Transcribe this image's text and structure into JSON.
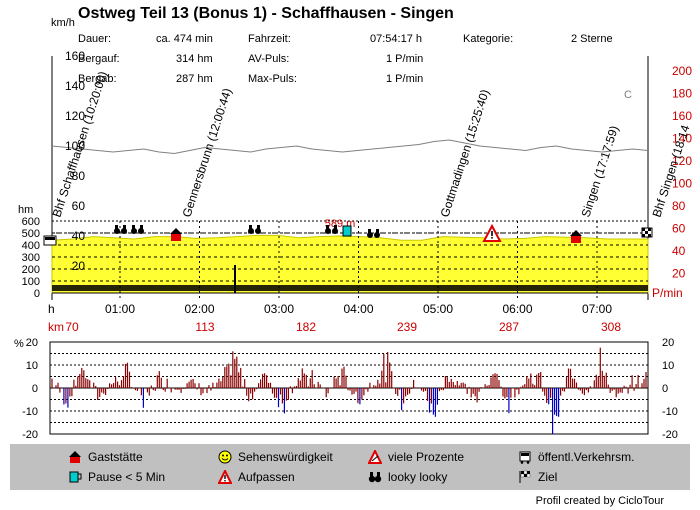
{
  "title": "Ostweg Teil 13 (Bonus 1) - Schaffhausen - Singen",
  "info": {
    "dauer_label": "Dauer:",
    "dauer_value": "ca. 474 min",
    "fahrzeit_label": "Fahrzeit:",
    "fahrzeit_value": "07:54:17 h",
    "kategorie_label": "Kategorie:",
    "kategorie_value": "2 Sterne",
    "bergauf_label": "Bergauf:",
    "bergauf_value": "314 hm",
    "avpuls_label": "AV-Puls:",
    "avpuls_value": "1 P/min",
    "bergab_label": "Bergab:",
    "bergab_value": "287 hm",
    "maxpuls_label": "Max-Puls:",
    "maxpuls_value": "1 P/min"
  },
  "axes": {
    "speed_unit": "km/h",
    "speed_ticks": [
      "160",
      "140",
      "120",
      "100",
      "80",
      "60",
      "40",
      "20"
    ],
    "pulse_unit_right_top": "",
    "pulse_ticks": [
      "200",
      "180",
      "160",
      "140",
      "120",
      "100",
      "80",
      "60",
      "40",
      "20"
    ],
    "pulse_unit": "P/min",
    "hm_label": "hm",
    "alt_ticks": [
      "600",
      "500",
      "400",
      "300",
      "200",
      "100",
      "0"
    ],
    "time_label": "h",
    "time_ticks": [
      "01:00",
      "02:00",
      "03:00",
      "04:00",
      "05:00",
      "06:00",
      "07:00"
    ],
    "dist_label": "km",
    "dist_ticks": [
      "70",
      "113",
      "182",
      "239",
      "287",
      "308"
    ],
    "max_alt_label": "589 m",
    "c_label": "C",
    "grade_unit": "%",
    "grade_ticks_left": [
      "20",
      "10",
      "0",
      "-10",
      "-20"
    ],
    "grade_ticks_right": [
      "20",
      "10",
      "0",
      "-10",
      "-20"
    ]
  },
  "waypoints": [
    {
      "label": "Bhf Schaffhausen (10:20:00)"
    },
    {
      "label": "Gennersbrunn (12:00:44)"
    },
    {
      "label": "Gottmadingen (15:25:40)"
    },
    {
      "label": "Singen (17:17:59)"
    },
    {
      "label": "Bhf Singen (18:14"
    }
  ],
  "legend": {
    "gaststaette": "Gaststätte",
    "pause": "Pause < 5 Min",
    "sehens": "Sehenswürdigkeit",
    "aufpassen": "Aufpassen",
    "prozente": "viele Prozente",
    "looky": "looky looky",
    "oeffentl": "öffentl.Verkehrsm.",
    "ziel": "Ziel"
  },
  "credit": "Profil created by CicloTour",
  "colors": {
    "elevation_fill": "#ffff33",
    "speed_line": "#808080",
    "grade_pos": "#8b0000",
    "grade_neg": "#0000cc",
    "red_axis": "#cc0000",
    "legend_bg": "#c0c0c0"
  },
  "chart_data": [
    {
      "type": "area",
      "title": "",
      "xlabel": "h",
      "ylabel": "hm",
      "x_ticks": [
        "01:00",
        "02:00",
        "03:00",
        "04:00",
        "05:00",
        "06:00",
        "07:00"
      ],
      "ylim": [
        0,
        600
      ],
      "series": [
        {
          "values": [
            440,
            450,
            470,
            460,
            450,
            470,
            470,
            455,
            460,
            470,
            480,
            480,
            460,
            470,
            475,
            470,
            460,
            440,
            440,
            470,
            465,
            460,
            450,
            455,
            470,
            465,
            460,
            450,
            450,
            450
          ]
        }
      ]
    },
    {
      "type": "line",
      "title": "",
      "xlabel": "h",
      "ylabel": "%",
      "ylim": [
        -20,
        20
      ],
      "series": [
        {
          "values": [
            5,
            -8,
            12,
            -5,
            3,
            8,
            -10,
            6,
            0,
            4,
            -3,
            2,
            15,
            -6,
            9,
            -12,
            4,
            7,
            -4,
            10,
            -8,
            3,
            13,
            -10,
            5,
            -15,
            8,
            2,
            -6,
            11,
            -9,
            4,
            6,
            -18,
            9,
            -3,
            14,
            -7,
            2,
            5
          ]
        }
      ]
    }
  ]
}
